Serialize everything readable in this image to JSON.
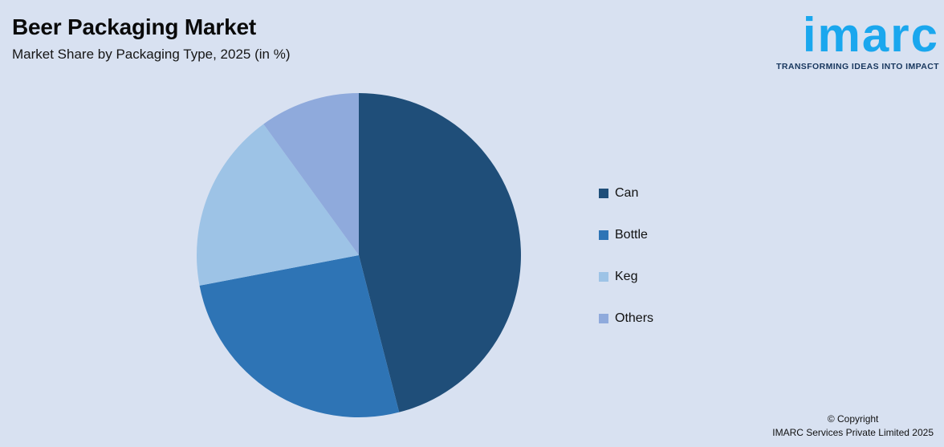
{
  "header": {
    "title": "Beer Packaging Market",
    "subtitle": "Market Share by Packaging Type, 2025 (in %)"
  },
  "logo": {
    "wordmark": "imarc",
    "tagline": "TRANSFORMING IDEAS INTO IMPACT",
    "wordmark_color": "#1aa7ee",
    "tagline_color": "#17365d"
  },
  "chart_data": {
    "type": "pie",
    "title": "Market Share by Packaging Type, 2025 (in %)",
    "categories": [
      "Can",
      "Bottle",
      "Keg",
      "Others"
    ],
    "values": [
      46,
      26,
      18,
      10
    ],
    "unit": "%",
    "colors": [
      "#1f4e79",
      "#2e74b5",
      "#9dc3e6",
      "#8faadc"
    ],
    "start_angle_deg": 0,
    "direction": "clockwise",
    "legend_position": "right",
    "data_labels": "none"
  },
  "footer": {
    "copyright_line1": "© Copyright",
    "copyright_line2": "IMARC Services Private Limited 2025"
  },
  "style": {
    "background_color": "#d8e1f1"
  }
}
